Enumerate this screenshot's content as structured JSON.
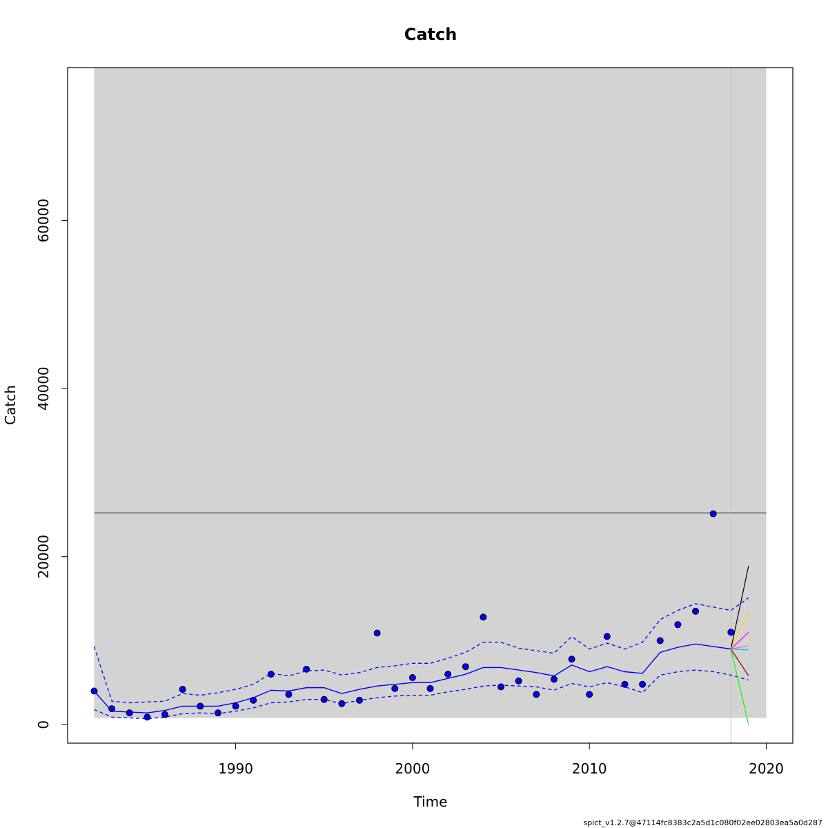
{
  "chart_data": {
    "type": "line",
    "title": "Catch",
    "xlabel": "Time",
    "ylabel": "Catch",
    "footer": "spict_v1.2.7@47114fc8383c2a5d1c080f02ee02803ea5a0d287",
    "xlim": [
      1980.5,
      2021.5
    ],
    "ylim": [
      -2200,
      78200
    ],
    "x_ticks": [
      1990,
      2000,
      2010,
      2020
    ],
    "y_ticks": [
      0,
      20000,
      40000,
      60000
    ],
    "shaded_region": {
      "x": [
        1982,
        2020
      ],
      "y": [
        800,
        78200
      ],
      "color": "#d3d3d3"
    },
    "reference_line": {
      "y": 25200,
      "color": "#808080"
    },
    "vertical_line": {
      "x": 2018,
      "color": "#bebebe"
    },
    "colors": {
      "fit": "#0000ff",
      "points": "#0000ff"
    },
    "observed": {
      "x": [
        1982,
        1983,
        1984,
        1985,
        1986,
        1987,
        1988,
        1989,
        1990,
        1991,
        1992,
        1993,
        1994,
        1995,
        1996,
        1997,
        1998,
        1999,
        2000,
        2001,
        2002,
        2003,
        2004,
        2005,
        2006,
        2007,
        2008,
        2009,
        2010,
        2011,
        2012,
        2013,
        2014,
        2015,
        2016,
        2017,
        2018
      ],
      "y": [
        4000,
        1900,
        1400,
        900,
        1200,
        4200,
        2200,
        1400,
        2200,
        2900,
        6000,
        3600,
        6600,
        3000,
        2500,
        2900,
        10900,
        4300,
        5600,
        4300,
        6000,
        6900,
        12800,
        4500,
        5200,
        3600,
        5400,
        7800,
        3600,
        10500,
        4800,
        4800,
        10000,
        11900,
        13500,
        25100,
        11000
      ]
    },
    "fit": {
      "x": [
        1982,
        1983,
        1984,
        1985,
        1986,
        1987,
        1988,
        1989,
        1990,
        1991,
        1992,
        1993,
        1994,
        1995,
        1996,
        1997,
        1998,
        1999,
        2000,
        2001,
        2002,
        2003,
        2004,
        2005,
        2006,
        2007,
        2008,
        2009,
        2010,
        2011,
        2012,
        2013,
        2014,
        2015,
        2016,
        2017,
        2018
      ],
      "y": [
        4000,
        1600,
        1500,
        1400,
        1700,
        2200,
        2200,
        2200,
        2600,
        3200,
        4100,
        4000,
        4400,
        4400,
        3700,
        4200,
        4600,
        4800,
        5000,
        5000,
        5500,
        6000,
        6800,
        6800,
        6500,
        6200,
        5800,
        7100,
        6300,
        6900,
        6300,
        6100,
        8600,
        9200,
        9600,
        9300,
        9000
      ],
      "lower": [
        1800,
        900,
        800,
        700,
        900,
        1300,
        1400,
        1300,
        1600,
        2000,
        2600,
        2700,
        3000,
        3000,
        2500,
        2900,
        3200,
        3400,
        3500,
        3500,
        3900,
        4200,
        4600,
        4700,
        4600,
        4500,
        4100,
        4900,
        4500,
        5000,
        4500,
        3800,
        5900,
        6300,
        6500,
        6300,
        5900
      ],
      "upper": [
        9300,
        2800,
        2600,
        2700,
        2800,
        3700,
        3500,
        3800,
        4200,
        4800,
        6100,
        5800,
        6400,
        6500,
        5900,
        6200,
        6800,
        7000,
        7300,
        7300,
        7900,
        8600,
        9800,
        9800,
        9100,
        8800,
        8500,
        10500,
        9000,
        9700,
        9000,
        9800,
        12500,
        13600,
        14400,
        14000,
        13600
      ]
    },
    "forecast": {
      "x_upper_end": 2019,
      "upper_end": 15100,
      "lower_end": 5300,
      "scenarios": [
        {
          "color": "#000000",
          "x": [
            2018,
            2019
          ],
          "y": [
            9000,
            18900
          ]
        },
        {
          "color": "#ffd700",
          "x": [
            2018,
            2019
          ],
          "y": [
            9000,
            13300
          ]
        },
        {
          "color": "#ff00ff",
          "x": [
            2018,
            2019
          ],
          "y": [
            9000,
            11000
          ]
        },
        {
          "color": "#ff69b4",
          "x": [
            2018,
            2019
          ],
          "y": [
            9000,
            9400
          ]
        },
        {
          "color": "#00bfff",
          "x": [
            2018,
            2019
          ],
          "y": [
            9000,
            8900
          ]
        },
        {
          "color": "#8b0000",
          "x": [
            2018,
            2019
          ],
          "y": [
            9000,
            5800
          ]
        },
        {
          "color": "#00ff00",
          "x": [
            2018,
            2019
          ],
          "y": [
            9000,
            0
          ]
        }
      ]
    }
  }
}
